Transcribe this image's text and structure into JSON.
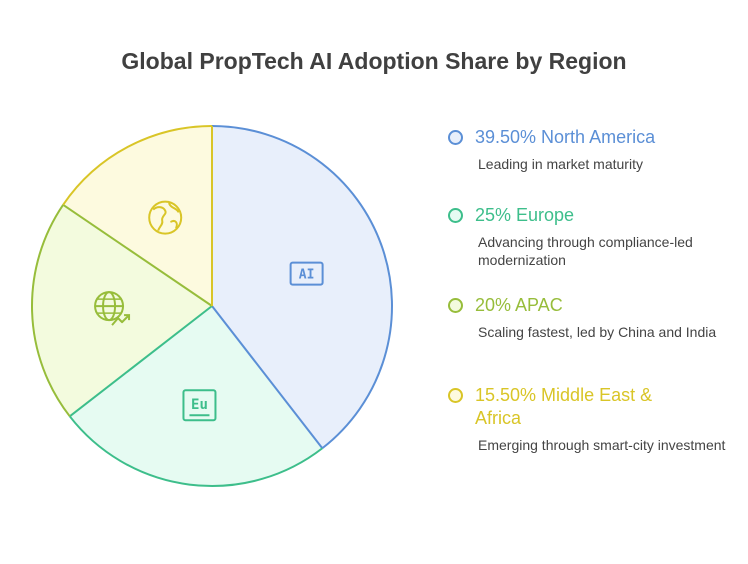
{
  "chart_data": {
    "type": "pie",
    "title": "Global PropTech AI Adoption Share by Region",
    "slices": [
      {
        "value": 39.5,
        "label": "39.50% North America",
        "description": "Leading in market maturity",
        "color": "#5B8FD6",
        "fill": "#E8EFFB",
        "icon": "ai-chip-icon"
      },
      {
        "value": 25,
        "label": "25% Europe",
        "description": "Advancing through compliance-led modernization",
        "color": "#3DBE8B",
        "fill": "#E6FBF2",
        "icon": "eu-badge-icon"
      },
      {
        "value": 20,
        "label": "20% APAC",
        "description": "Scaling fastest, led by China and India",
        "color": "#97BD3B",
        "fill": "#F3FBDE",
        "icon": "globe-growth-icon"
      },
      {
        "value": 15.5,
        "label": "15.50% Middle East & Africa",
        "description": "Emerging through smart-city investment",
        "color": "#D9C527",
        "fill": "#FDFADF",
        "icon": "globe-africa-icon"
      }
    ],
    "icon_texts": {
      "ai": "AI",
      "eu": "Eu"
    },
    "legend_position": "right"
  }
}
